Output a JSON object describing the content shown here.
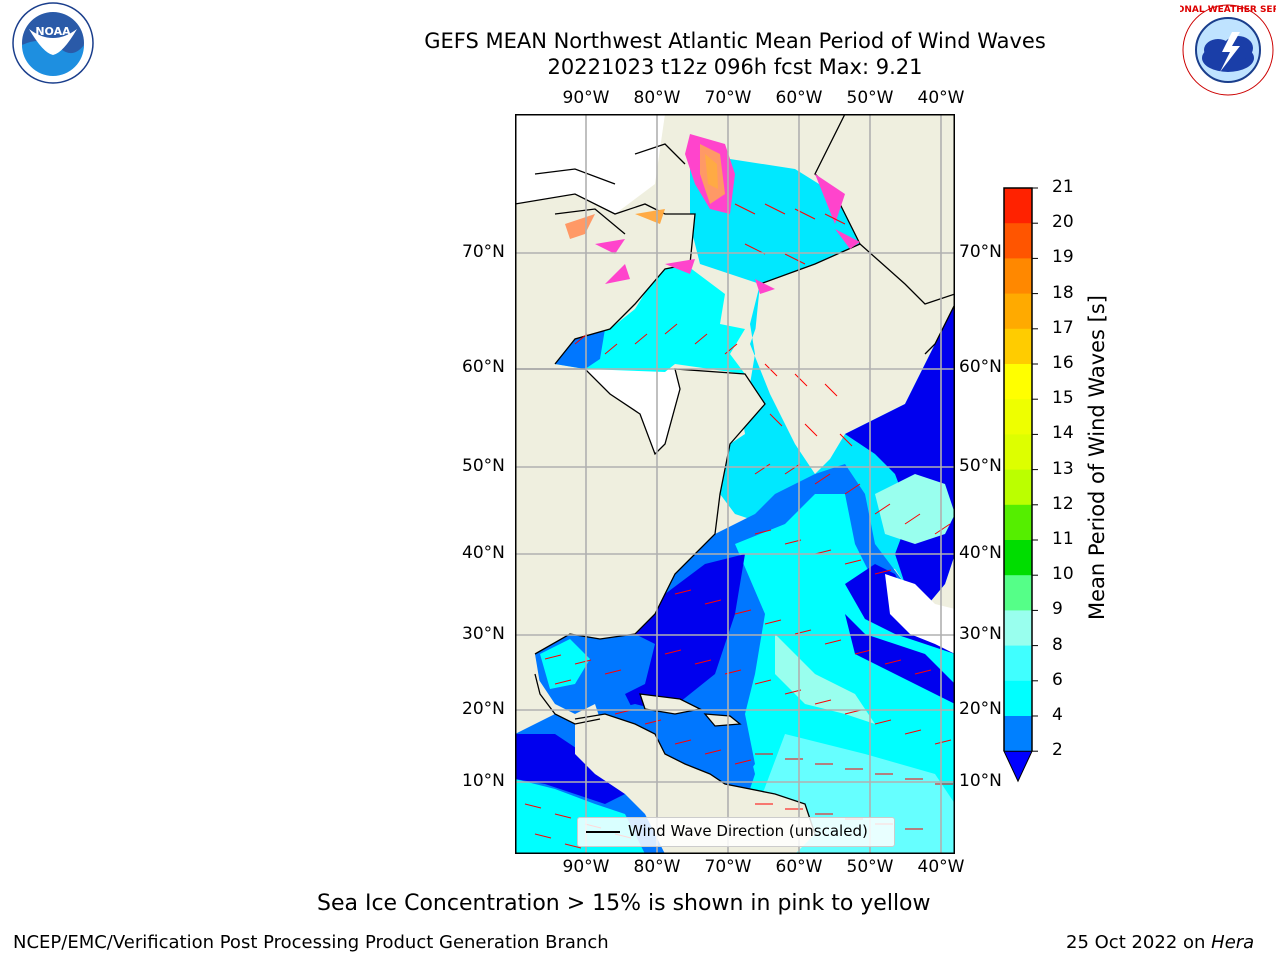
{
  "header": {
    "title_line1": "GEFS MEAN Northwest Atlantic Mean Period of Wind Waves",
    "title_line2": "20221023 t12z 096h fcst   Max: 9.21"
  },
  "logos": {
    "noaa_text": "NOAA",
    "noaa_ring": "NATIONAL OCEANIC AND ATMOSPHERIC ADMINISTRATION · U.S. DEPARTMENT OF COMMERCE",
    "nws_ring": "NATIONAL WEATHER SERVICE"
  },
  "map": {
    "lon_labels": [
      "90°W",
      "80°W",
      "70°W",
      "60°W",
      "50°W",
      "40°W"
    ],
    "lat_labels": [
      "70°N",
      "60°N",
      "50°N",
      "40°N",
      "30°N",
      "20°N",
      "10°N"
    ],
    "legend_label": "Wind Wave Direction (unscaled)",
    "colors": {
      "land": "#efefdf",
      "ocean_low": "#0077ff",
      "ocean_mid": "#00ffff",
      "ocean_hi": "#99ffee",
      "calm": "#0000ee",
      "arrow": "#ff0000",
      "ice": "#ff44cc",
      "grid": "#b0b0b0"
    }
  },
  "colorbar": {
    "title": "Mean Period of Wind Waves [s]",
    "tick_labels": [
      "21",
      "20",
      "19",
      "18",
      "17",
      "16",
      "15",
      "14",
      "13",
      "12",
      "11",
      "10",
      "9",
      "8",
      "6",
      "4",
      "2"
    ],
    "levels": [
      2,
      4,
      6,
      8,
      9,
      10,
      11,
      12,
      13,
      14,
      15,
      16,
      17,
      18,
      19,
      20,
      21
    ],
    "colors": [
      "#0080ff",
      "#00ffff",
      "#40ffff",
      "#99ffee",
      "#55ff88",
      "#00dd00",
      "#55ee00",
      "#bbff00",
      "#ddff00",
      "#eeff00",
      "#ffff00",
      "#ffcc00",
      "#ffaa00",
      "#ff8800",
      "#ff5500",
      "#ff2200"
    ],
    "extend_color": "#0000ff"
  },
  "note": "Sea Ice Concentration > 15% is shown in pink to yellow",
  "footer": {
    "left": "NCEP/EMC/Verification Post Processing Product Generation Branch",
    "date": "25 Oct 2022 on",
    "machine": "Hera"
  }
}
